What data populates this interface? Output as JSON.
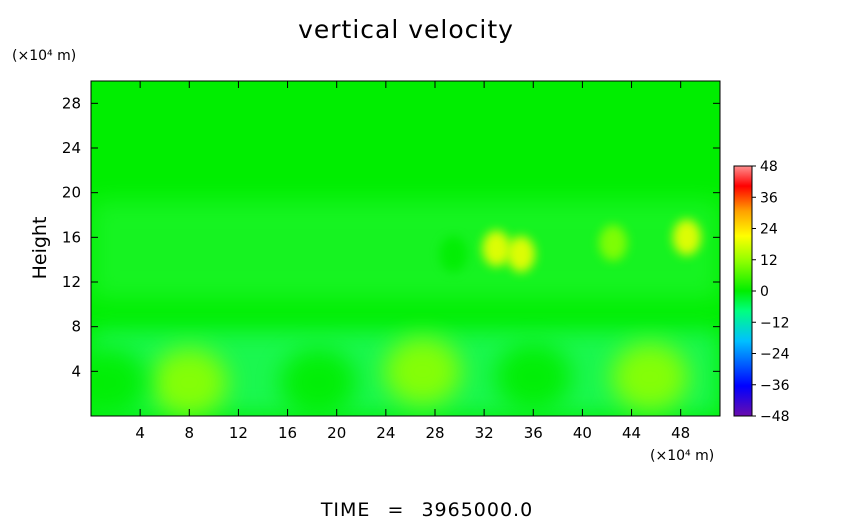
{
  "chart_data": {
    "type": "heatmap",
    "title": "vertical velocity",
    "ylabel": "Height",
    "x_unit": "(×10⁴ m)",
    "y_unit": "(×10⁴ m)",
    "x_ticks": [
      4,
      8,
      12,
      16,
      20,
      24,
      28,
      32,
      36,
      40,
      44,
      48
    ],
    "y_ticks": [
      4,
      8,
      12,
      16,
      20,
      24,
      28
    ],
    "xlim": [
      0,
      51.2
    ],
    "ylim": [
      0,
      30
    ],
    "colorbar": {
      "ticks": [
        48,
        36,
        24,
        12,
        0,
        -12,
        -24,
        -36,
        -48
      ],
      "tick_labels": [
        "48",
        "36",
        "24",
        "12",
        "0",
        "−12",
        "−24",
        "−36",
        "−48"
      ],
      "range": [
        -48,
        48
      ],
      "colormap": [
        "#6a0dad",
        "#0000ff",
        "#00c0ff",
        "#00ff60",
        "#00ee00",
        "#90ff00",
        "#ffff00",
        "#ffa000",
        "#ff0000",
        "#ff9090"
      ]
    },
    "field_features": [
      {
        "kind": "updraft",
        "x": 8,
        "y": 3,
        "value": 10
      },
      {
        "kind": "updraft",
        "x": 27,
        "y": 4,
        "value": 7
      },
      {
        "kind": "updraft",
        "x": 45.5,
        "y": 3.5,
        "value": 8
      },
      {
        "kind": "downdraft",
        "x": 1.5,
        "y": 3,
        "value": -8
      },
      {
        "kind": "downdraft",
        "x": 18.5,
        "y": 3,
        "value": -9
      },
      {
        "kind": "downdraft",
        "x": 36,
        "y": 3.5,
        "value": -8
      },
      {
        "kind": "downdraft",
        "x": 29.5,
        "y": 14.5,
        "value": -8
      },
      {
        "kind": "updraft",
        "x": 33,
        "y": 15,
        "value": 14
      },
      {
        "kind": "updraft",
        "x": 35,
        "y": 14.5,
        "value": 12
      },
      {
        "kind": "updraft",
        "x": 48.5,
        "y": 16,
        "value": 14
      },
      {
        "kind": "updraft",
        "x": 42.5,
        "y": 15.5,
        "value": 10
      }
    ]
  },
  "footer": {
    "label": "TIME",
    "sep": "=",
    "value": "3965000.0"
  },
  "colors": {
    "background": "#00ee00",
    "axis": "#000000"
  }
}
